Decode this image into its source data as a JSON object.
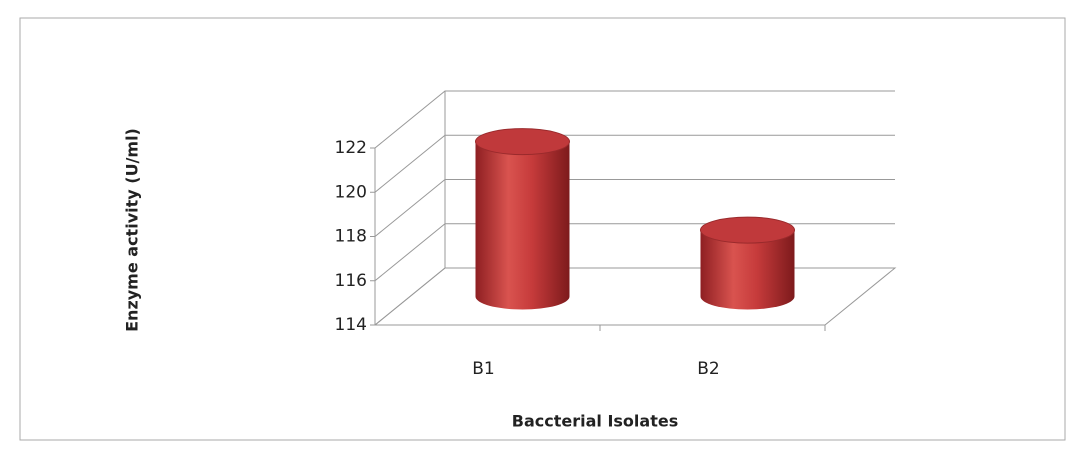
{
  "chart_data": {
    "type": "bar",
    "y_label": "Enzyme activity (U/ml)",
    "x_label": "Baccterial Isolates",
    "categories": [
      "B1",
      "B2"
    ],
    "values": [
      121,
      117
    ],
    "color": "#c0393b",
    "ylim": [
      114,
      122
    ],
    "yticks": [
      114,
      116,
      118,
      120,
      122
    ],
    "grid": true
  }
}
